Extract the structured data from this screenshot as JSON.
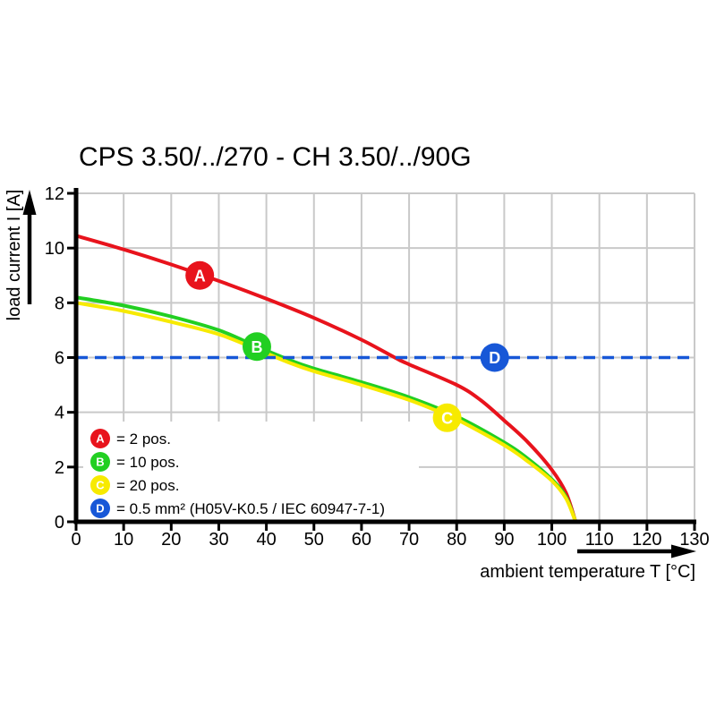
{
  "chart_data": {
    "type": "line",
    "title": "CPS 3.50/../270 - CH 3.50/../90G",
    "xlabel": "ambient temperature T [°C]",
    "ylabel": "load current I [A]",
    "xlim": [
      0,
      130
    ],
    "ylim": [
      0,
      12
    ],
    "x_ticks": [
      0,
      10,
      20,
      30,
      40,
      50,
      60,
      70,
      80,
      90,
      100,
      110,
      120,
      130
    ],
    "y_ticks": [
      0,
      2,
      4,
      6,
      8,
      10,
      12
    ],
    "grid": true,
    "grid_color": "#c9c9c9",
    "axis_color": "#000000",
    "legend_position": "bottom-left-inside",
    "series": [
      {
        "name": "A",
        "legend_label": "= 2 pos.",
        "color": "#e8131c",
        "style": "solid",
        "points": [
          [
            0,
            10.45
          ],
          [
            10,
            9.95
          ],
          [
            20,
            9.4
          ],
          [
            30,
            8.8
          ],
          [
            40,
            8.15
          ],
          [
            50,
            7.45
          ],
          [
            60,
            6.65
          ],
          [
            67,
            6.0
          ],
          [
            70,
            5.75
          ],
          [
            80,
            5.0
          ],
          [
            85,
            4.45
          ],
          [
            90,
            3.7
          ],
          [
            95,
            2.9
          ],
          [
            100,
            1.9
          ],
          [
            103,
            1.05
          ],
          [
            105,
            0
          ]
        ]
      },
      {
        "name": "B",
        "legend_label": "= 10 pos.",
        "color": "#22cf22",
        "style": "solid",
        "points": [
          [
            0,
            8.2
          ],
          [
            10,
            7.9
          ],
          [
            20,
            7.5
          ],
          [
            30,
            7.0
          ],
          [
            38,
            6.4
          ],
          [
            45,
            5.9
          ],
          [
            50,
            5.6
          ],
          [
            60,
            5.1
          ],
          [
            70,
            4.55
          ],
          [
            80,
            3.85
          ],
          [
            90,
            2.9
          ],
          [
            95,
            2.3
          ],
          [
            100,
            1.55
          ],
          [
            103,
            0.9
          ],
          [
            105,
            0
          ]
        ]
      },
      {
        "name": "C",
        "legend_label": "= 20 pos.",
        "color": "#f7ea00",
        "style": "solid",
        "points": [
          [
            0,
            8.0
          ],
          [
            10,
            7.7
          ],
          [
            20,
            7.3
          ],
          [
            30,
            6.85
          ],
          [
            38,
            6.3
          ],
          [
            45,
            5.8
          ],
          [
            50,
            5.5
          ],
          [
            60,
            5.0
          ],
          [
            70,
            4.45
          ],
          [
            78,
            3.9
          ],
          [
            80,
            3.75
          ],
          [
            90,
            2.8
          ],
          [
            95,
            2.2
          ],
          [
            100,
            1.5
          ],
          [
            103,
            0.85
          ],
          [
            105,
            0
          ]
        ]
      },
      {
        "name": "D",
        "legend_label": "= 0.5 mm² (H05V-K0.5 / IEC 60947-7-1)",
        "color": "#1757d7",
        "style": "dashed",
        "points": [
          [
            0,
            6
          ],
          [
            130,
            6
          ]
        ]
      }
    ],
    "markers": [
      {
        "letter": "A",
        "x": 26,
        "y": 9.0,
        "color": "#e8131c"
      },
      {
        "letter": "B",
        "x": 38,
        "y": 6.4,
        "color": "#22cf22"
      },
      {
        "letter": "C",
        "x": 78,
        "y": 3.8,
        "color": "#f7ea00"
      },
      {
        "letter": "D",
        "x": 88,
        "y": 6.0,
        "color": "#1757d7"
      }
    ]
  }
}
